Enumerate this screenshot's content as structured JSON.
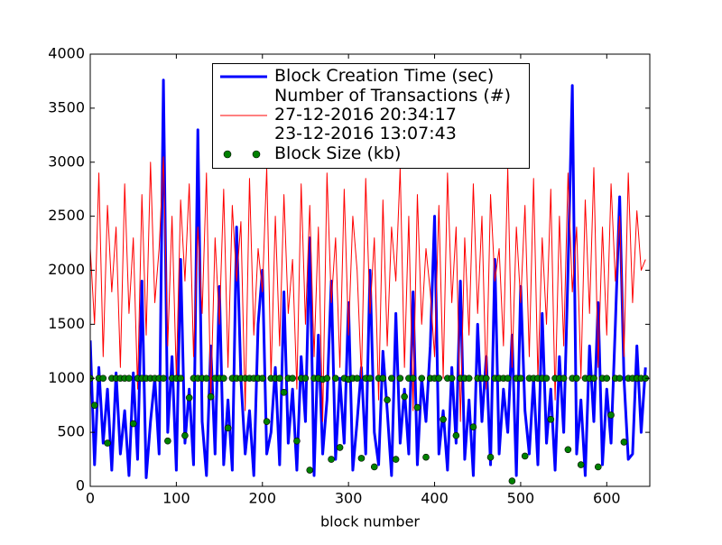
{
  "chart_data": {
    "type": "line",
    "xlabel": "block number",
    "x": [
      0,
      5,
      10,
      15,
      20,
      25,
      30,
      35,
      40,
      45,
      50,
      55,
      60,
      65,
      70,
      75,
      80,
      85,
      90,
      95,
      100,
      105,
      110,
      115,
      120,
      125,
      130,
      135,
      140,
      145,
      150,
      155,
      160,
      165,
      170,
      175,
      180,
      185,
      190,
      195,
      200,
      205,
      210,
      215,
      220,
      225,
      230,
      235,
      240,
      245,
      250,
      255,
      260,
      265,
      270,
      275,
      280,
      285,
      290,
      295,
      300,
      305,
      310,
      315,
      320,
      325,
      330,
      335,
      340,
      345,
      350,
      355,
      360,
      365,
      370,
      375,
      380,
      385,
      390,
      395,
      400,
      405,
      410,
      415,
      420,
      425,
      430,
      435,
      440,
      445,
      450,
      455,
      460,
      465,
      470,
      475,
      480,
      485,
      490,
      495,
      500,
      505,
      510,
      515,
      520,
      525,
      530,
      535,
      540,
      545,
      550,
      555,
      560,
      565,
      570,
      575,
      580,
      585,
      590,
      595,
      600,
      605,
      610,
      615,
      620,
      625,
      630,
      635,
      640,
      645
    ],
    "series": [
      {
        "name": "Block Creation Time (sec)",
        "color": "#0000ff",
        "style": "line",
        "values": [
          1350,
          200,
          1100,
          400,
          900,
          150,
          1050,
          300,
          700,
          100,
          1050,
          250,
          1900,
          80,
          600,
          1000,
          300,
          3760,
          500,
          1200,
          150,
          2100,
          400,
          900,
          200,
          3300,
          600,
          100,
          1300,
          300,
          1850,
          200,
          800,
          150,
          2400,
          1000,
          300,
          700,
          100,
          1500,
          2000,
          300,
          500,
          1100,
          200,
          1800,
          400,
          900,
          150,
          1200,
          600,
          2300,
          100,
          1400,
          300,
          800,
          1900,
          250,
          1000,
          400,
          1700,
          150,
          600,
          1100,
          300,
          2000,
          500,
          200,
          1250,
          700,
          100,
          1600,
          400,
          900,
          300,
          1800,
          200,
          1000,
          600,
          1300,
          2500,
          300,
          700,
          150,
          1100,
          400,
          1900,
          250,
          800,
          100,
          1500,
          600,
          1200,
          200,
          2100,
          300,
          900,
          500,
          1400,
          100,
          1850,
          700,
          300,
          1000,
          200,
          1600,
          400,
          900,
          150,
          1200,
          500,
          2000,
          3710,
          300,
          800,
          100,
          1300,
          600,
          1700,
          200,
          900,
          400,
          1500,
          2680,
          1000,
          250,
          300,
          1300,
          500,
          1100
        ]
      },
      {
        "name": "Number of Transactions (#)\n27-12-2016 20:34:17\n23-12-2016 13:07:43",
        "color": "#ff0000",
        "style": "line",
        "values": [
          2200,
          1500,
          2900,
          1200,
          2600,
          1800,
          2400,
          1100,
          2800,
          1600,
          2300,
          900,
          2700,
          1400,
          3000,
          1700,
          2200,
          3050,
          1300,
          2500,
          1000,
          2650,
          1900,
          2800,
          1200,
          2400,
          1600,
          2900,
          800,
          2300,
          1500,
          2750,
          1100,
          2600,
          1900,
          2450,
          700,
          2850,
          1400,
          2200,
          1800,
          2950,
          1000,
          2500,
          1300,
          2700,
          1600,
          2100,
          900,
          2800,
          1500,
          2600,
          1200,
          2400,
          600,
          2900,
          1700,
          2300,
          1100,
          2750,
          1400,
          2500,
          2000,
          1000,
          2850,
          1600,
          2300,
          800,
          2650,
          1300,
          2400,
          1900,
          2950,
          1100,
          2500,
          700,
          2700,
          1500,
          2200,
          1800,
          1200,
          2600,
          1000,
          2900,
          1700,
          2400,
          600,
          2300,
          1400,
          2800,
          1600,
          2500,
          900,
          2700,
          1900,
          2200,
          1300,
          2950,
          1100,
          2400,
          1700,
          2600,
          1200,
          2850,
          1000,
          2300,
          1500,
          2750,
          800,
          2500,
          1300,
          2900,
          1800,
          2400,
          1000,
          2650,
          1600,
          2950,
          1100,
          2400,
          1400,
          2800,
          1900,
          2500,
          1200,
          2900,
          1700,
          2550,
          2000,
          2100
        ]
      },
      {
        "name": "Block Size (kb)",
        "color": "#008000",
        "style": "dots",
        "values": [
          1000,
          750,
          1000,
          1000,
          400,
          1000,
          1000,
          1000,
          1000,
          1000,
          580,
          1000,
          1000,
          1000,
          1000,
          1000,
          1000,
          1000,
          420,
          1000,
          1000,
          1000,
          470,
          820,
          1000,
          1000,
          1000,
          1000,
          830,
          1000,
          1000,
          1000,
          540,
          1000,
          1000,
          1000,
          1000,
          1000,
          1000,
          1000,
          1000,
          600,
          1000,
          1000,
          1000,
          870,
          1000,
          1000,
          420,
          1000,
          1000,
          150,
          1000,
          1000,
          990,
          1000,
          250,
          1000,
          360,
          1000,
          990,
          1000,
          1000,
          260,
          1000,
          1000,
          180,
          1000,
          1000,
          800,
          1000,
          250,
          1000,
          830,
          1000,
          1000,
          730,
          1000,
          270,
          1000,
          1000,
          1000,
          620,
          1000,
          1000,
          470,
          1000,
          1000,
          1000,
          550,
          1000,
          1000,
          1000,
          270,
          1000,
          1000,
          1000,
          1000,
          50,
          1000,
          1000,
          280,
          1000,
          1000,
          1000,
          1000,
          1000,
          620,
          1000,
          1000,
          1000,
          340,
          1000,
          1000,
          200,
          1000,
          1000,
          1000,
          180,
          1000,
          1000,
          660,
          1000,
          1000,
          410,
          1000,
          1000,
          1000,
          1000,
          1000
        ]
      }
    ],
    "xlim": [
      0,
      650
    ],
    "xticks": [
      0,
      100,
      200,
      300,
      400,
      500,
      600
    ],
    "ylim": [
      0,
      4000
    ],
    "yticks": [
      0,
      500,
      1000,
      1500,
      2000,
      2500,
      3000,
      3500,
      4000
    ],
    "legend": "upper center"
  }
}
